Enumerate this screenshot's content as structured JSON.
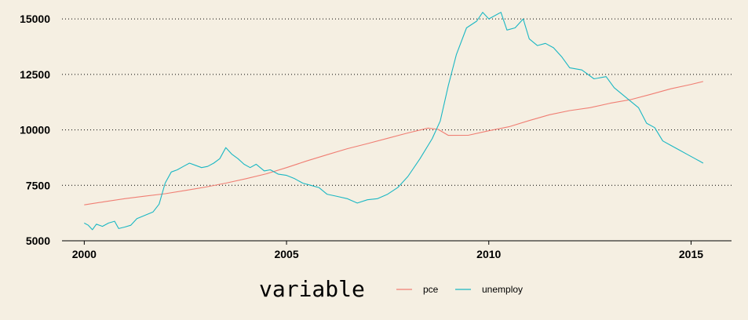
{
  "chart_data": {
    "type": "line",
    "title": "",
    "xlabel": "",
    "ylabel": "",
    "xlim": [
      1999.45,
      2016.0
    ],
    "ylim": [
      5000,
      15500
    ],
    "x_ticks": [
      2000,
      2005,
      2010,
      2015
    ],
    "x_tick_labels": [
      "2000",
      "2005",
      "2010",
      "2015"
    ],
    "y_ticks": [
      5000,
      7500,
      10000,
      12500,
      15000
    ],
    "y_tick_labels": [
      "5000",
      "7500",
      "10000",
      "12500",
      "15000"
    ],
    "grid": "horizontal dotted at y ticks above baseline",
    "legend": {
      "title": "variable",
      "placement": "bottom"
    },
    "colors": {
      "background": "#f5efe2",
      "pce": "#f07e73",
      "unemploy": "#1ab7c3",
      "grid": "#000000"
    },
    "series": [
      {
        "name": "pce",
        "points": [
          [
            2000.0,
            6620
          ],
          [
            2000.5,
            6760
          ],
          [
            2001.0,
            6900
          ],
          [
            2001.5,
            7010
          ],
          [
            2002.0,
            7120
          ],
          [
            2002.5,
            7270
          ],
          [
            2003.0,
            7420
          ],
          [
            2003.5,
            7600
          ],
          [
            2004.0,
            7800
          ],
          [
            2004.5,
            8020
          ],
          [
            2005.0,
            8300
          ],
          [
            2005.5,
            8600
          ],
          [
            2006.0,
            8880
          ],
          [
            2006.5,
            9150
          ],
          [
            2007.0,
            9380
          ],
          [
            2007.5,
            9620
          ],
          [
            2008.0,
            9860
          ],
          [
            2008.5,
            10080
          ],
          [
            2008.75,
            10020
          ],
          [
            2009.0,
            9750
          ],
          [
            2009.5,
            9760
          ],
          [
            2010.0,
            9960
          ],
          [
            2010.5,
            10140
          ],
          [
            2011.0,
            10420
          ],
          [
            2011.5,
            10680
          ],
          [
            2012.0,
            10870
          ],
          [
            2012.5,
            11000
          ],
          [
            2013.0,
            11200
          ],
          [
            2013.5,
            11360
          ],
          [
            2014.0,
            11600
          ],
          [
            2014.5,
            11850
          ],
          [
            2015.0,
            12050
          ],
          [
            2015.3,
            12180
          ]
        ]
      },
      {
        "name": "unemploy",
        "points": [
          [
            2000.0,
            5800
          ],
          [
            2000.1,
            5700
          ],
          [
            2000.2,
            5500
          ],
          [
            2000.3,
            5750
          ],
          [
            2000.45,
            5650
          ],
          [
            2000.6,
            5800
          ],
          [
            2000.75,
            5880
          ],
          [
            2000.85,
            5550
          ],
          [
            2001.0,
            5620
          ],
          [
            2001.15,
            5700
          ],
          [
            2001.3,
            6000
          ],
          [
            2001.5,
            6150
          ],
          [
            2001.7,
            6300
          ],
          [
            2001.85,
            6650
          ],
          [
            2002.0,
            7600
          ],
          [
            2002.15,
            8100
          ],
          [
            2002.3,
            8200
          ],
          [
            2002.45,
            8350
          ],
          [
            2002.6,
            8500
          ],
          [
            2002.75,
            8400
          ],
          [
            2002.9,
            8300
          ],
          [
            2003.05,
            8350
          ],
          [
            2003.2,
            8500
          ],
          [
            2003.35,
            8700
          ],
          [
            2003.5,
            9200
          ],
          [
            2003.65,
            8900
          ],
          [
            2003.8,
            8700
          ],
          [
            2003.95,
            8450
          ],
          [
            2004.1,
            8300
          ],
          [
            2004.25,
            8450
          ],
          [
            2004.45,
            8150
          ],
          [
            2004.6,
            8200
          ],
          [
            2004.8,
            8000
          ],
          [
            2005.0,
            7950
          ],
          [
            2005.2,
            7800
          ],
          [
            2005.4,
            7600
          ],
          [
            2005.6,
            7500
          ],
          [
            2005.8,
            7400
          ],
          [
            2006.0,
            7100
          ],
          [
            2006.25,
            7000
          ],
          [
            2006.5,
            6900
          ],
          [
            2006.75,
            6700
          ],
          [
            2007.0,
            6850
          ],
          [
            2007.25,
            6900
          ],
          [
            2007.5,
            7100
          ],
          [
            2007.75,
            7400
          ],
          [
            2008.0,
            7900
          ],
          [
            2008.3,
            8700
          ],
          [
            2008.6,
            9600
          ],
          [
            2008.8,
            10400
          ],
          [
            2009.0,
            12000
          ],
          [
            2009.2,
            13400
          ],
          [
            2009.45,
            14600
          ],
          [
            2009.7,
            14900
          ],
          [
            2009.85,
            15300
          ],
          [
            2010.0,
            15000
          ],
          [
            2010.3,
            15300
          ],
          [
            2010.45,
            14500
          ],
          [
            2010.65,
            14600
          ],
          [
            2010.85,
            15000
          ],
          [
            2011.0,
            14100
          ],
          [
            2011.2,
            13800
          ],
          [
            2011.4,
            13900
          ],
          [
            2011.6,
            13700
          ],
          [
            2011.8,
            13300
          ],
          [
            2012.0,
            12800
          ],
          [
            2012.3,
            12700
          ],
          [
            2012.6,
            12300
          ],
          [
            2012.9,
            12400
          ],
          [
            2013.1,
            11900
          ],
          [
            2013.3,
            11600
          ],
          [
            2013.5,
            11300
          ],
          [
            2013.7,
            11000
          ],
          [
            2013.9,
            10300
          ],
          [
            2014.1,
            10100
          ],
          [
            2014.3,
            9500
          ],
          [
            2014.5,
            9300
          ],
          [
            2014.7,
            9100
          ],
          [
            2014.9,
            8900
          ],
          [
            2015.1,
            8700
          ],
          [
            2015.3,
            8500
          ]
        ]
      }
    ]
  }
}
